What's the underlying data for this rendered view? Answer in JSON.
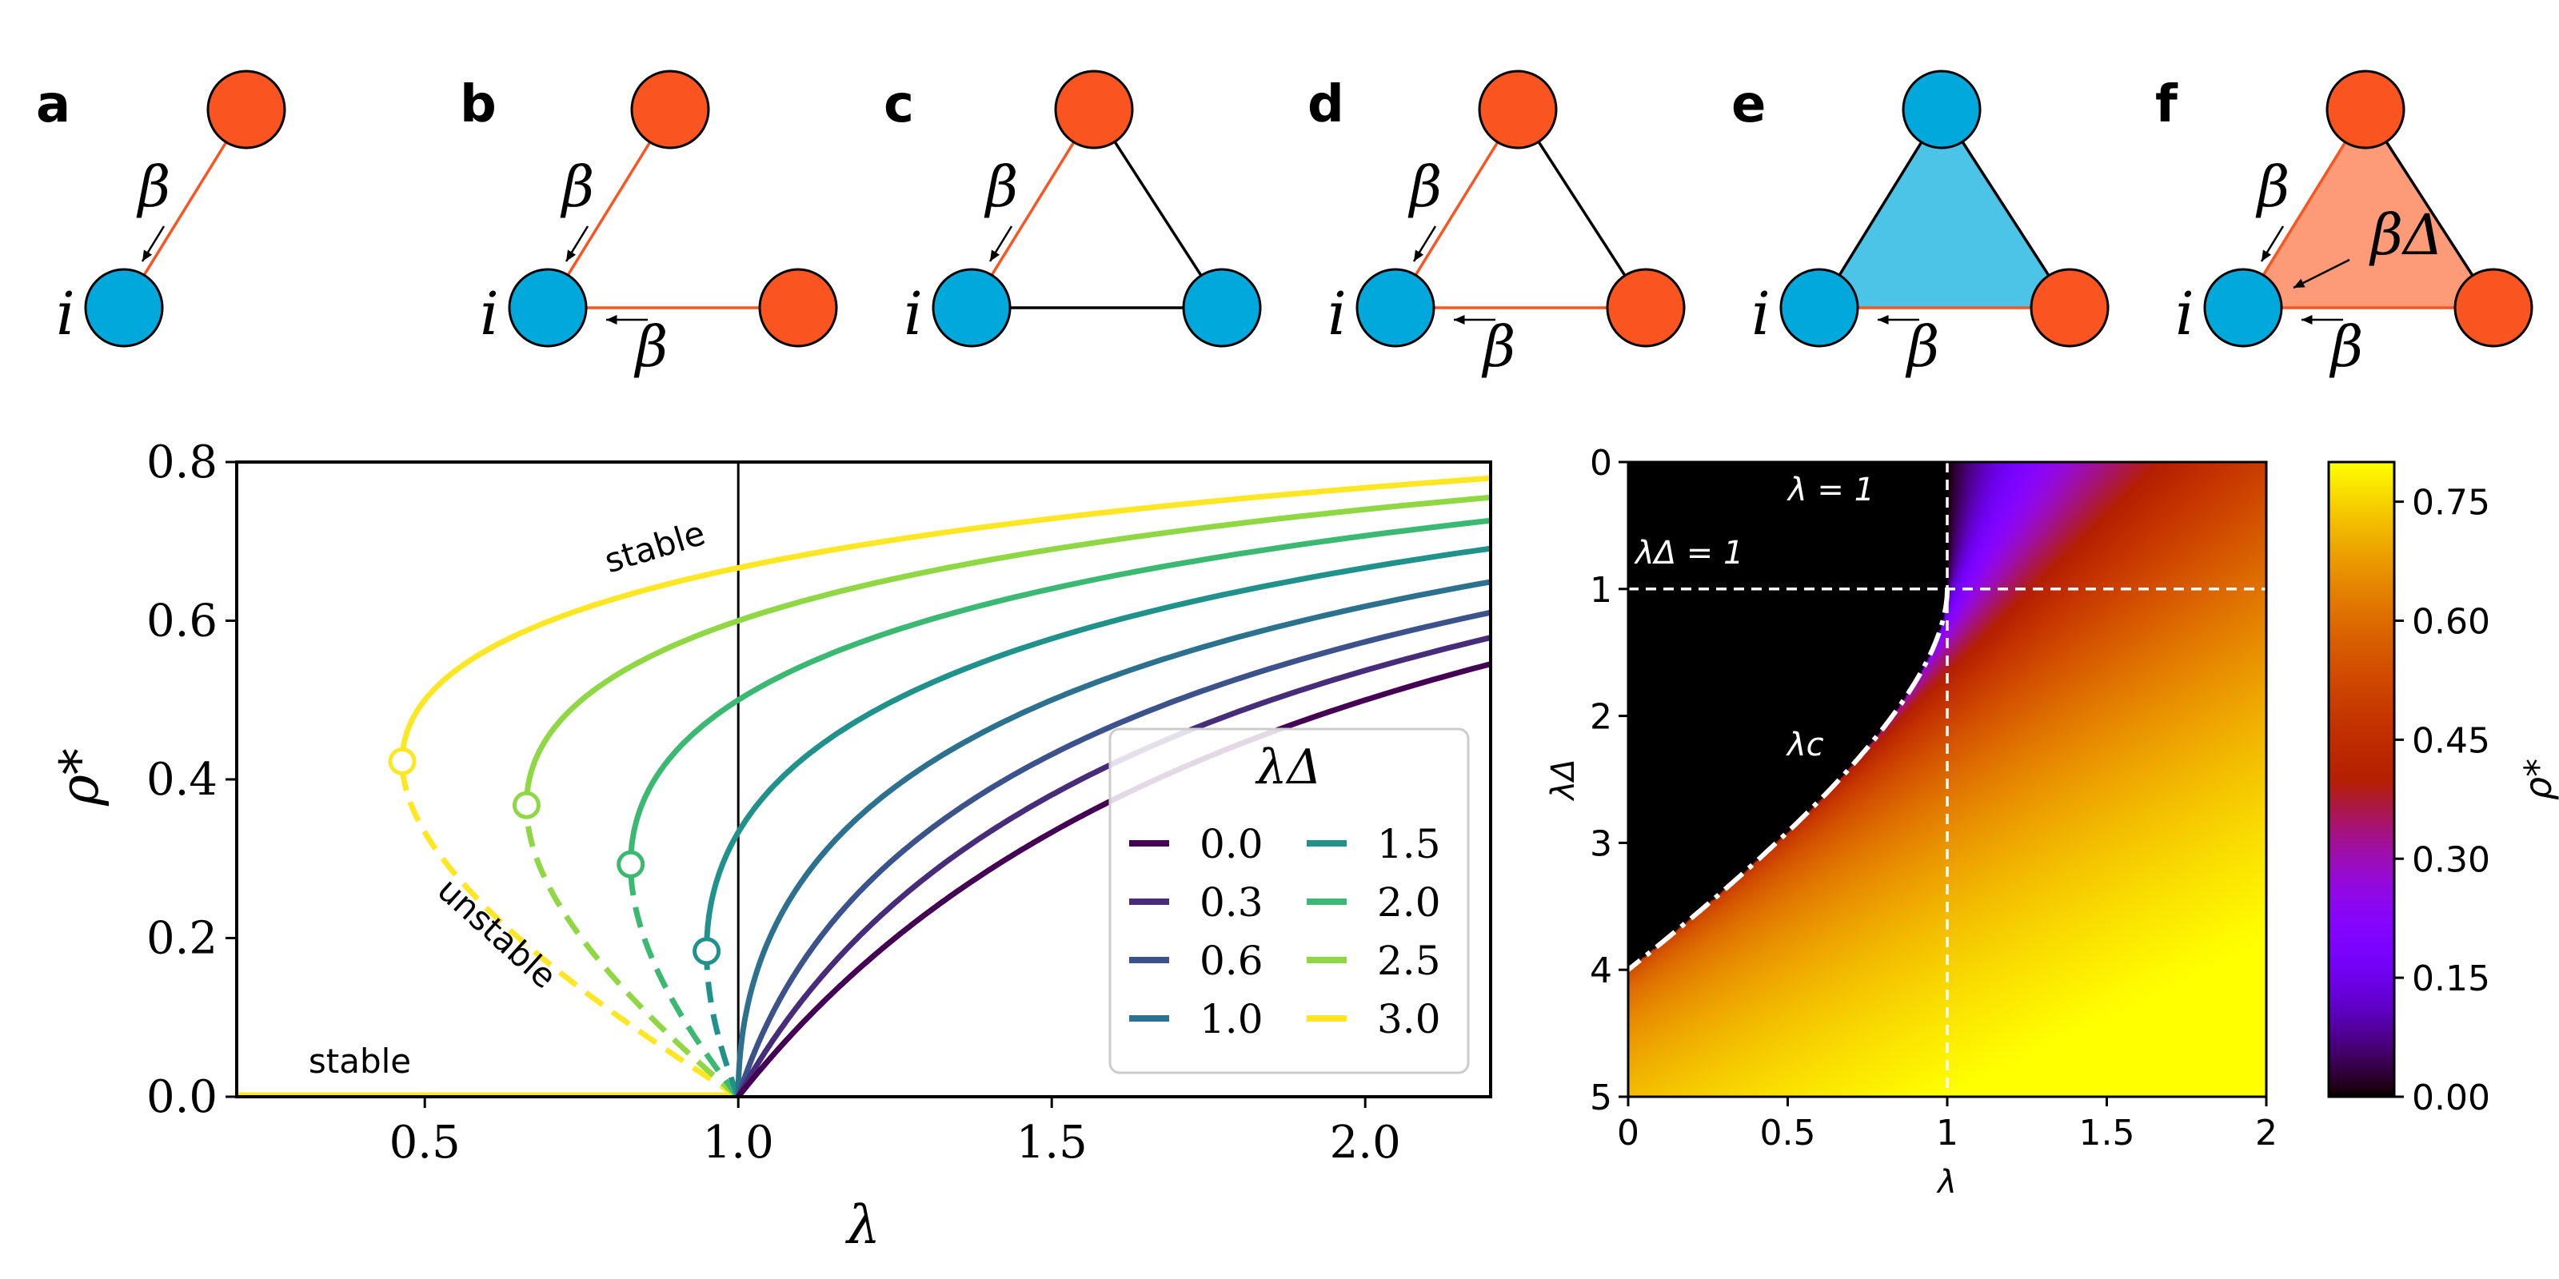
{
  "colors": {
    "infected": "#fa5420",
    "susceptible": "#00a8dc",
    "susceptible_fill": "#4bc4e8",
    "infected_fill": "#fd9a78",
    "black": "#000000",
    "white": "#ffffff"
  },
  "motifs": [
    {
      "letter": "a",
      "node_label": "i",
      "nodes": [
        "susceptible",
        "infected"
      ],
      "edges": [
        {
          "color": "infected",
          "label": "β"
        }
      ],
      "simplex": ""
    },
    {
      "letter": "b",
      "node_label": "i",
      "nodes": [
        "susceptible",
        "infected",
        "infected"
      ],
      "edges": [
        {
          "color": "infected",
          "label": "β"
        },
        {
          "color": "infected",
          "label": "β"
        },
        {
          "color": "none",
          "label": ""
        }
      ],
      "simplex": ""
    },
    {
      "letter": "c",
      "node_label": "i",
      "nodes": [
        "susceptible",
        "infected",
        "susceptible"
      ],
      "edges": [
        {
          "color": "infected",
          "label": "β"
        },
        {
          "color": "black",
          "label": ""
        },
        {
          "color": "black",
          "label": ""
        }
      ],
      "simplex": ""
    },
    {
      "letter": "d",
      "node_label": "i",
      "nodes": [
        "susceptible",
        "infected",
        "infected"
      ],
      "edges": [
        {
          "color": "infected",
          "label": "β"
        },
        {
          "color": "infected",
          "label": "β"
        },
        {
          "color": "black",
          "label": ""
        }
      ],
      "simplex": ""
    },
    {
      "letter": "e",
      "node_label": "i",
      "nodes": [
        "susceptible",
        "susceptible",
        "infected"
      ],
      "edges": [
        {
          "color": "black",
          "label": ""
        },
        {
          "color": "infected",
          "label": "β"
        },
        {
          "color": "black",
          "label": ""
        }
      ],
      "simplex": "susceptible_fill"
    },
    {
      "letter": "f",
      "node_label": "i",
      "nodes": [
        "susceptible",
        "infected",
        "infected"
      ],
      "edges": [
        {
          "color": "infected",
          "label": "β"
        },
        {
          "color": "infected",
          "label": "β"
        },
        {
          "color": "black",
          "label": ""
        }
      ],
      "simplex": "infected_fill",
      "simplex_label": "βΔ"
    }
  ],
  "chart_data": [
    {
      "type": "line",
      "xlabel": "λ",
      "ylabel": "ρ*",
      "xlim": [
        0.2,
        2.2
      ],
      "ylim": [
        0.0,
        0.8
      ],
      "xticks": [
        "0.5",
        "1.0",
        "1.5",
        "2.0"
      ],
      "yticks": [
        "0.0",
        "0.2",
        "0.4",
        "0.6",
        "0.8"
      ],
      "xtick_values": [
        0.5,
        1.0,
        1.5,
        2.0
      ],
      "ytick_values": [
        0.0,
        0.2,
        0.4,
        0.6,
        0.8
      ],
      "vertical_line_x": 1.0,
      "legend": {
        "title": "λΔ",
        "placement": "lower right",
        "columns": 2
      },
      "series": [
        {
          "name": "0.0",
          "lambda_delta": 0.0,
          "color": "#440154"
        },
        {
          "name": "0.3",
          "lambda_delta": 0.3,
          "color": "#472c7a"
        },
        {
          "name": "0.6",
          "lambda_delta": 0.6,
          "color": "#3b528b"
        },
        {
          "name": "1.0",
          "lambda_delta": 1.0,
          "color": "#2c728e"
        },
        {
          "name": "1.5",
          "lambda_delta": 1.5,
          "color": "#21918c"
        },
        {
          "name": "2.0",
          "lambda_delta": 2.0,
          "color": "#3bb972"
        },
        {
          "name": "2.5",
          "lambda_delta": 2.5,
          "color": "#8fd744"
        },
        {
          "name": "3.0",
          "lambda_delta": 3.0,
          "color": "#fde725"
        }
      ],
      "trivial_branch": {
        "lambda_range": [
          0.2,
          1.0
        ],
        "rho": 0.0
      },
      "annotations": {
        "stable_top": "stable",
        "unstable": "unstable",
        "stable_bottom": "stable"
      }
    },
    {
      "type": "heatmap",
      "xlabel": "λ",
      "ylabel": "λΔ",
      "xlim": [
        0,
        2
      ],
      "ylim": [
        5,
        0
      ],
      "xticks": [
        "0",
        "0.5",
        "1",
        "1.5",
        "2"
      ],
      "yticks": [
        "0",
        "1",
        "2",
        "3",
        "4",
        "5"
      ],
      "xtick_values": [
        0,
        0.5,
        1,
        1.5,
        2
      ],
      "ytick_values": [
        0,
        1,
        2,
        3,
        4,
        5
      ],
      "colormap": "gnuplot",
      "colorbar": {
        "label": "ρ*",
        "range": [
          0.0,
          0.8
        ],
        "ticks": [
          "0.00",
          "0.15",
          "0.30",
          "0.45",
          "0.60",
          "0.75"
        ],
        "tick_values": [
          0.0,
          0.15,
          0.3,
          0.45,
          0.6,
          0.75
        ]
      },
      "annotations": {
        "lambda_eq_1": "λ = 1",
        "lambda_delta_eq_1": "λΔ = 1",
        "critical": "λc"
      },
      "critical_curve": "λc = 2·sqrt(λΔ) − λΔ for 1 ≤ λΔ ≤ 4"
    }
  ]
}
